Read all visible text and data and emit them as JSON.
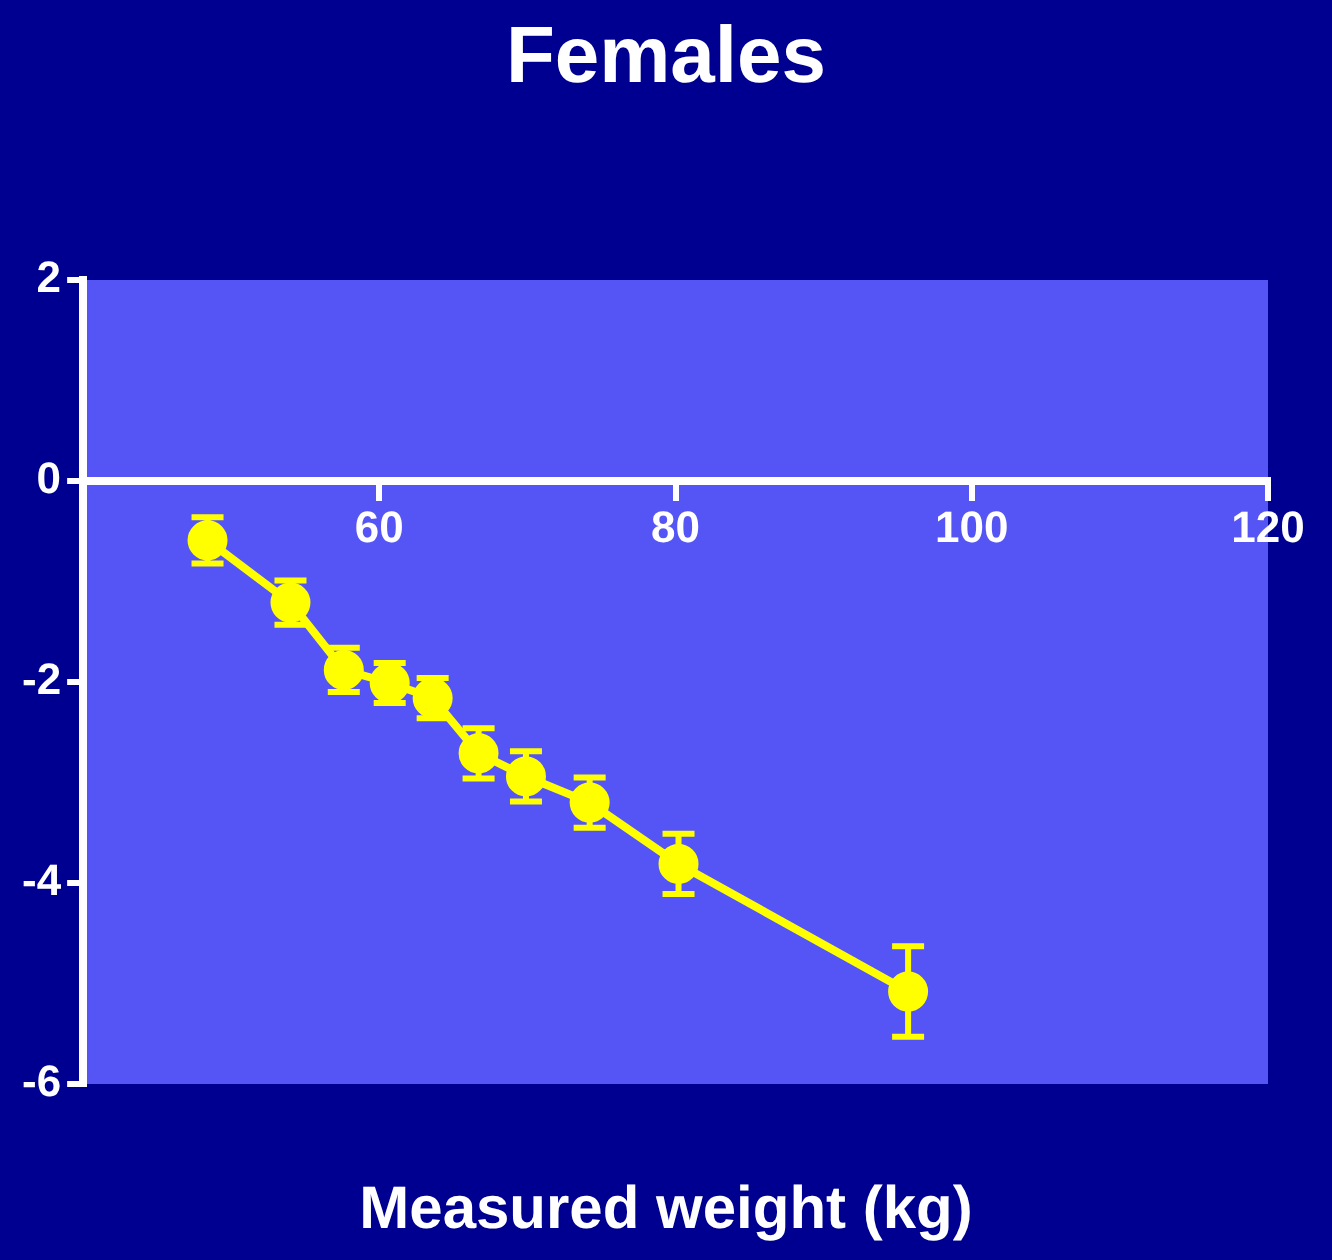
{
  "chart_data": {
    "type": "line",
    "title": "Females",
    "xlabel": "Measured weight (kg)",
    "x": [
      48.4,
      54.0,
      57.6,
      60.7,
      63.6,
      66.7,
      69.9,
      74.2,
      80.2,
      95.7
    ],
    "series": [
      {
        "color": "#ffff00",
        "values": [
          -0.59,
          -1.21,
          -1.88,
          -2.01,
          -2.16,
          -2.71,
          -2.94,
          -3.2,
          -3.81,
          -5.08
        ],
        "errors": [
          0.23,
          0.22,
          0.22,
          0.2,
          0.2,
          0.25,
          0.25,
          0.25,
          0.3,
          0.45
        ]
      }
    ],
    "xlim": [
      40,
      120
    ],
    "xticks": [
      60,
      80,
      100,
      120
    ],
    "ylim": [
      -6,
      2
    ],
    "yticks": [
      -6,
      -4,
      -2,
      0,
      2
    ],
    "grid": false,
    "legend": false,
    "marker": "circle",
    "line_style": "solid"
  }
}
